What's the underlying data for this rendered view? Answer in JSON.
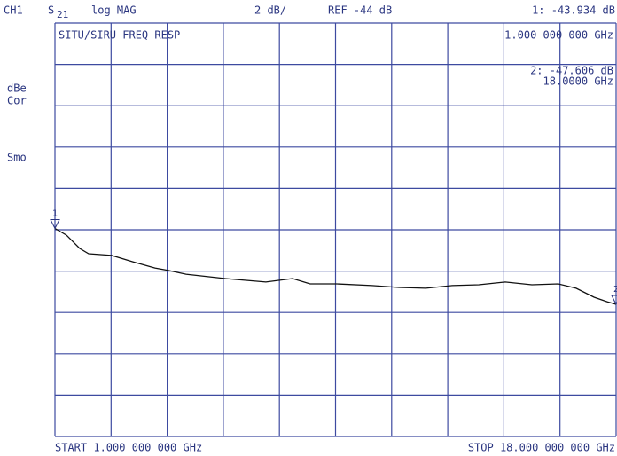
{
  "header": {
    "channel": "CH1",
    "parameter": "S",
    "parameter_sub": "21",
    "format": "log MAG",
    "scale": "2 dB/",
    "reference": "REF -44 dB",
    "marker_readout": "1: -43.934 dB"
  },
  "annotations": {
    "enhance": "dBe",
    "correction": "Cor",
    "smoothing": "Smo"
  },
  "footer": {
    "start": "START  1.000 000 000 GHz",
    "stop": "STOP 18.000 000 000 GHz"
  },
  "chart_data": {
    "type": "line",
    "title": "SITU/SIRU FREQ RESP",
    "marker_1_freq": "1.000 000 000 GHz",
    "marker_2_readout": "2: -47.606 dB",
    "marker_2_freq": "18.0000 GHz",
    "x": [
      1,
      1.35,
      1.75,
      2.02,
      2.72,
      3.36,
      4.03,
      4.44,
      4.97,
      6.16,
      7.39,
      8.2,
      8.73,
      9.54,
      10.61,
      11.42,
      12.23,
      13.03,
      13.84,
      14.64,
      15.45,
      16.25,
      16.79,
      17.33,
      17.73,
      18
    ],
    "values": [
      -43.934,
      -44.26,
      -44.9,
      -45.16,
      -45.24,
      -45.55,
      -45.85,
      -45.97,
      -46.15,
      -46.36,
      -46.53,
      -46.36,
      -46.62,
      -46.62,
      -46.7,
      -46.79,
      -46.83,
      -46.7,
      -46.66,
      -46.53,
      -46.66,
      -46.62,
      -46.83,
      -47.26,
      -47.48,
      -47.606
    ],
    "color": "#111111",
    "grid_color": "#3d4aa0",
    "xlim": [
      1,
      18
    ],
    "xticks": [
      1,
      2.7,
      4.4,
      6.1,
      7.8,
      9.5,
      11.2,
      12.9,
      14.6,
      16.3,
      18
    ],
    "ylim": [
      -54,
      -34
    ],
    "yticks": [
      -54,
      -52,
      -50,
      -48,
      -46,
      -44,
      -42,
      -40,
      -38,
      -36,
      -34
    ],
    "grid": true,
    "markers": [
      {
        "label": "1",
        "x": 1,
        "value": -43.934
      },
      {
        "label": "2",
        "x": 18,
        "value": -47.606
      }
    ]
  }
}
